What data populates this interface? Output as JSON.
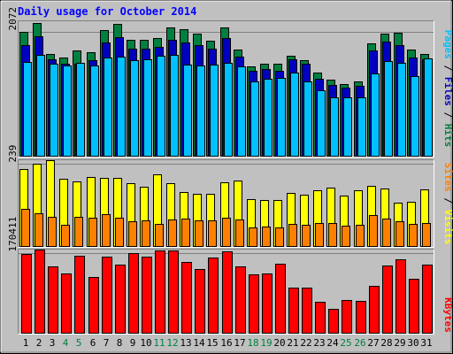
{
  "chart_data": [
    {
      "type": "bar",
      "title": "Daily usage for October 2014",
      "ylabel_parts": [
        "Pages",
        "Files",
        "Hits"
      ],
      "y_tick_label": "2072",
      "y_tick_value": 2072,
      "categories": [
        "1",
        "2",
        "3",
        "4",
        "5",
        "6",
        "7",
        "8",
        "9",
        "10",
        "11",
        "12",
        "13",
        "14",
        "15",
        "16",
        "17",
        "18",
        "19",
        "20",
        "21",
        "22",
        "23",
        "24",
        "25",
        "26",
        "27",
        "28",
        "29",
        "30",
        "31"
      ],
      "weekend_days": [
        "4",
        "5",
        "11",
        "12",
        "18",
        "19",
        "25",
        "26"
      ],
      "ylim": [
        0,
        2250
      ],
      "series": [
        {
          "name": "Hits",
          "color": "#008040",
          "values": [
            2072,
            2227,
            1710,
            1641,
            1772,
            1733,
            2100,
            2205,
            1940,
            1940,
            1972,
            2150,
            2112,
            2040,
            1930,
            2150,
            1780,
            1497,
            1545,
            1545,
            1672,
            1601,
            1403,
            1278,
            1205,
            1252,
            1880,
            2040,
            2060,
            1780,
            1710
          ]
        },
        {
          "name": "Files",
          "color": "#0000C0",
          "values": [
            1860,
            2000,
            1620,
            1548,
            1548,
            1598,
            1890,
            1980,
            1790,
            1790,
            1820,
            1940,
            1900,
            1850,
            1790,
            1975,
            1661,
            1426,
            1450,
            1430,
            1620,
            1544,
            1299,
            1198,
            1150,
            1176,
            1760,
            1910,
            1860,
            1640,
            1622
          ]
        },
        {
          "name": "Pages",
          "color": "#00C0FF",
          "values": [
            1568,
            1688,
            1542,
            1515,
            1562,
            1518,
            1650,
            1660,
            1604,
            1612,
            1683,
            1692,
            1535,
            1521,
            1536,
            1563,
            1504,
            1256,
            1296,
            1305,
            1399,
            1244,
            1107,
            986,
            978,
            986,
            1375,
            1581,
            1558,
            1338,
            1629
          ]
        }
      ]
    },
    {
      "type": "bar",
      "ylabel_parts": [
        "Sites",
        "Visits"
      ],
      "y_tick_label": "239",
      "y_tick_value": 239,
      "ylim": [
        0,
        250
      ],
      "series": [
        {
          "name": "Visits",
          "color": "#FFFF00",
          "values": [
            225,
            239,
            250,
            197,
            188,
            202,
            200,
            200,
            184,
            174,
            210,
            184,
            157,
            154,
            153,
            187,
            192,
            139,
            136,
            135,
            156,
            150,
            162,
            172,
            147,
            163,
            176,
            169,
            128,
            129,
            167
          ]
        },
        {
          "name": "Sites",
          "color": "#FF8000",
          "values": [
            110,
            97,
            87,
            65,
            86,
            84,
            95,
            85,
            74,
            77,
            67,
            79,
            81,
            77,
            77,
            84,
            78,
            57,
            59,
            55,
            66,
            63,
            68,
            70,
            61,
            65,
            92,
            81,
            74,
            67,
            69
          ]
        }
      ]
    },
    {
      "type": "bar",
      "ylabel_parts": [
        "KBytes"
      ],
      "y_tick_label": "170411",
      "y_tick_value": 170411,
      "ylim": [
        0,
        178000
      ],
      "series": [
        {
          "name": "KBytes",
          "color": "#FF0000",
          "values": [
            168000,
            178000,
            143000,
            127000,
            164000,
            120000,
            163000,
            146000,
            170000,
            163000,
            177000,
            176000,
            152000,
            136000,
            162000,
            175000,
            143000,
            126000,
            127000,
            148000,
            98000,
            98000,
            68000,
            53000,
            72000,
            70000,
            101000,
            144000,
            157000,
            116000,
            146000
          ]
        }
      ]
    }
  ],
  "colors": {
    "background": "#C0C0C0",
    "title": "#0000FF",
    "weekday_label": "#000000",
    "weekend_label": "#008040",
    "plot_border_dark": "#808080",
    "plot_border_light": "#FFFFFF",
    "gridline": "#808080",
    "bar_outline": "#000000"
  }
}
